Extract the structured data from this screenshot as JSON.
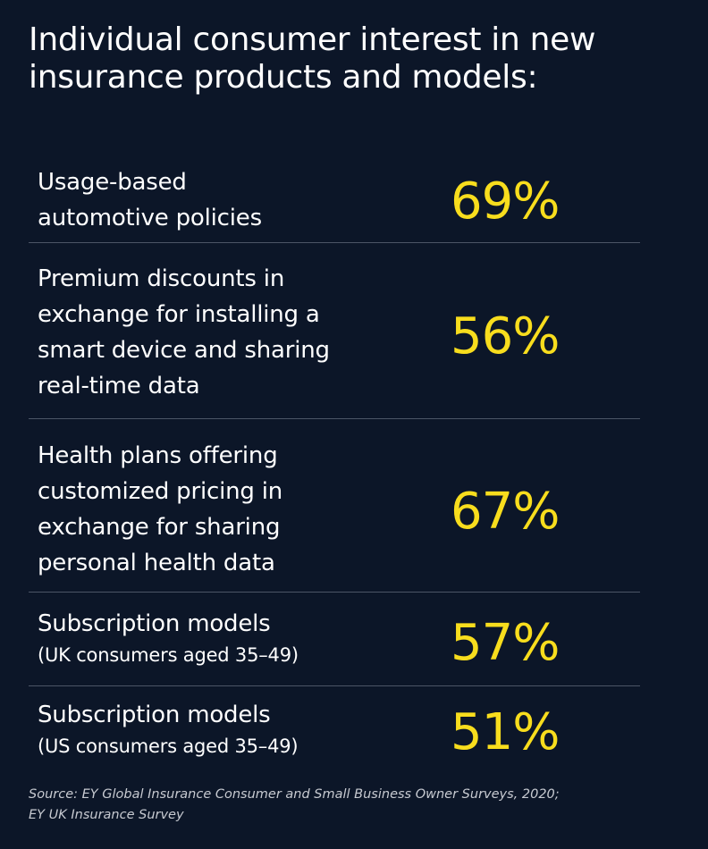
{
  "title": {
    "line1": "Individual consumer interest in new",
    "line2": "insurance products and models:"
  },
  "chart_data": {
    "type": "table",
    "title": "Individual consumer interest in new insurance products and models:",
    "unit": "%",
    "rows": [
      {
        "lines": [
          "Usage-based",
          "automotive policies"
        ],
        "sub": "",
        "value": 69,
        "display": "69%"
      },
      {
        "lines": [
          "Premium discounts in",
          "exchange for installing a",
          "smart device and sharing",
          "real-time data"
        ],
        "sub": "",
        "value": 56,
        "display": "56%"
      },
      {
        "lines": [
          "Health plans offering",
          "customized pricing in",
          "exchange for sharing",
          "personal health data"
        ],
        "sub": "",
        "value": 67,
        "display": "67%"
      },
      {
        "lines": [
          "Subscription models"
        ],
        "sub": "(UK consumers aged 35–49)",
        "value": 57,
        "display": "57%"
      },
      {
        "lines": [
          "Subscription models"
        ],
        "sub": "(US consumers aged 35–49)",
        "value": 51,
        "display": "51%"
      }
    ]
  },
  "source": {
    "line1": "Source: EY Global Insurance Consumer and Small Business Owner Surveys, 2020;",
    "line2": "EY UK Insurance Survey"
  },
  "colors": {
    "background": "#0c1628",
    "text": "#ffffff",
    "accent": "#f8dd1d",
    "divider": "#4c5566"
  }
}
